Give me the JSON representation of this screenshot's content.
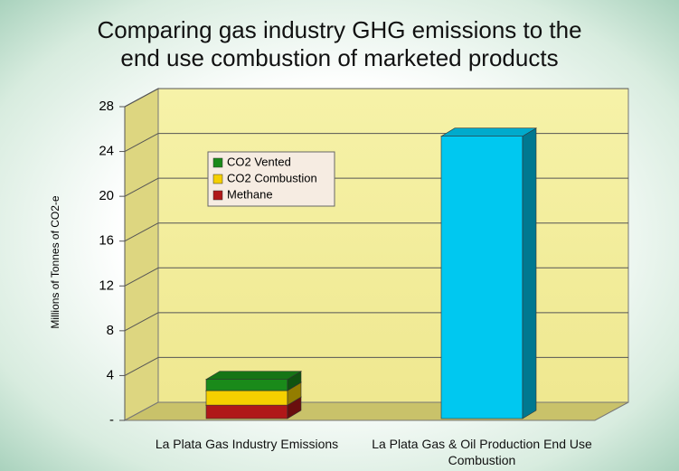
{
  "chart_data": {
    "type": "bar3d_stacked",
    "title": "Comparing gas industry GHG emissions to the end use combustion of marketed products",
    "y_label": "Millions of Tonnes of CO2-e",
    "categories": [
      "La Plata Gas Industry Emissions",
      "La Plata Gas & Oil Production End Use Combustion"
    ],
    "series": [
      {
        "name": "Methane",
        "color": "#b01818",
        "values": [
          1.2,
          null
        ]
      },
      {
        "name": "CO2 Combustion",
        "color": [
          "#f5d000",
          "#00c8f0"
        ],
        "values": [
          1.3,
          25.2
        ]
      },
      {
        "name": "CO2 Vented",
        "color": "#1a8a1a",
        "values": [
          1.0,
          null
        ]
      }
    ],
    "ylim": [
      0,
      28
    ],
    "yticks": [
      {
        "value": 0,
        "label": "-"
      },
      4,
      8,
      12,
      16,
      20,
      24,
      28
    ],
    "grid": true,
    "legend": "upper left"
  }
}
